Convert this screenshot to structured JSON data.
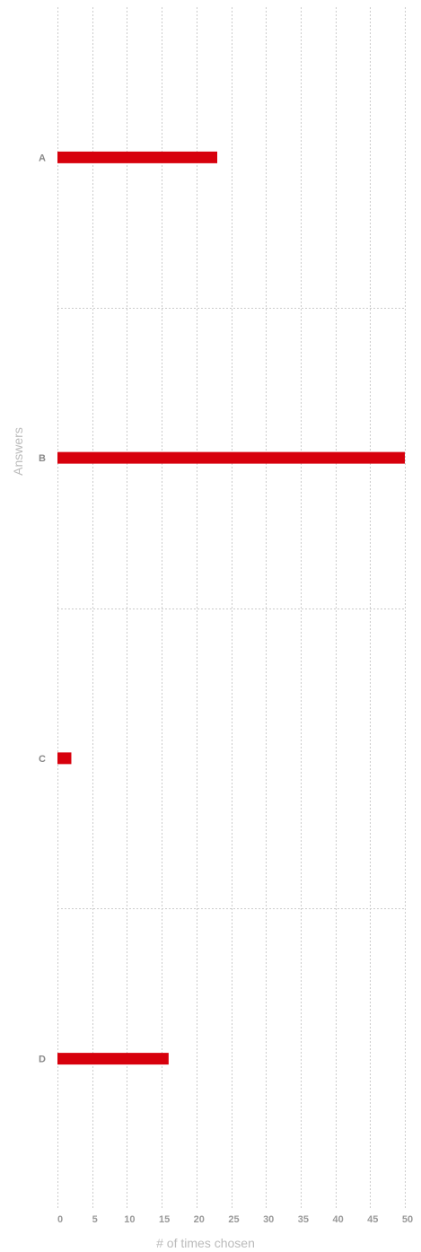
{
  "chart_data": {
    "type": "bar",
    "orientation": "horizontal",
    "categories": [
      "A",
      "B",
      "C",
      "D"
    ],
    "values": [
      23,
      50,
      2,
      16
    ],
    "xlabel": "# of times chosen",
    "ylabel": "Answers",
    "xlim": [
      0,
      50
    ],
    "xticks": [
      "0",
      "5",
      "10",
      "15",
      "20",
      "25",
      "30",
      "35",
      "40",
      "45",
      "50"
    ],
    "grid": true,
    "legend": "none",
    "bar_color": "#d7000c"
  }
}
